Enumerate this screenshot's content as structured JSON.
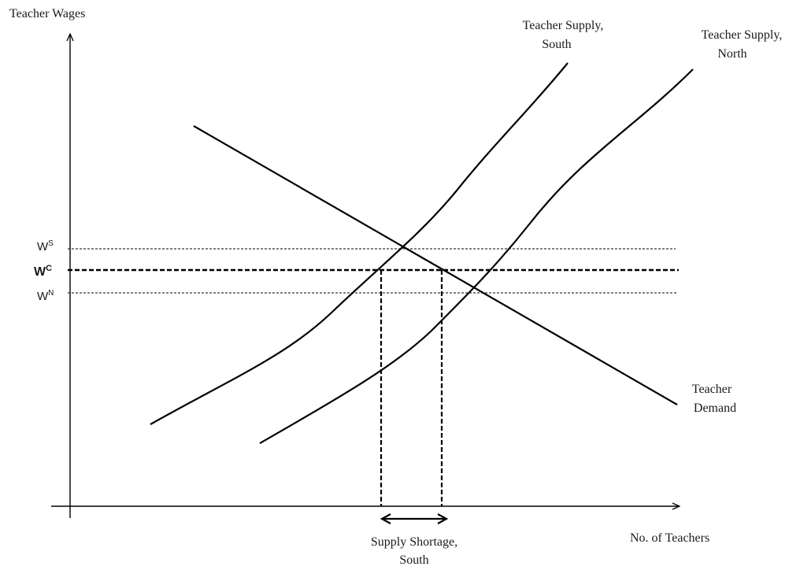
{
  "axes": {
    "y_title": "Teacher Wages",
    "x_title": "No. of Teachers"
  },
  "wage_labels": {
    "ws": {
      "main": "W",
      "sup": "S"
    },
    "wc": {
      "main": "W",
      "sup": "C"
    },
    "wn": {
      "main": "W",
      "sup": "N"
    }
  },
  "curves": {
    "supply_south": {
      "line1": "Teacher Supply,",
      "line2": "South"
    },
    "supply_north": {
      "line1": "Teacher Supply,",
      "line2": "North"
    },
    "demand": {
      "line1": "Teacher",
      "line2": "Demand"
    }
  },
  "shortage": {
    "line1": "Supply Shortage,",
    "line2": "South"
  }
}
